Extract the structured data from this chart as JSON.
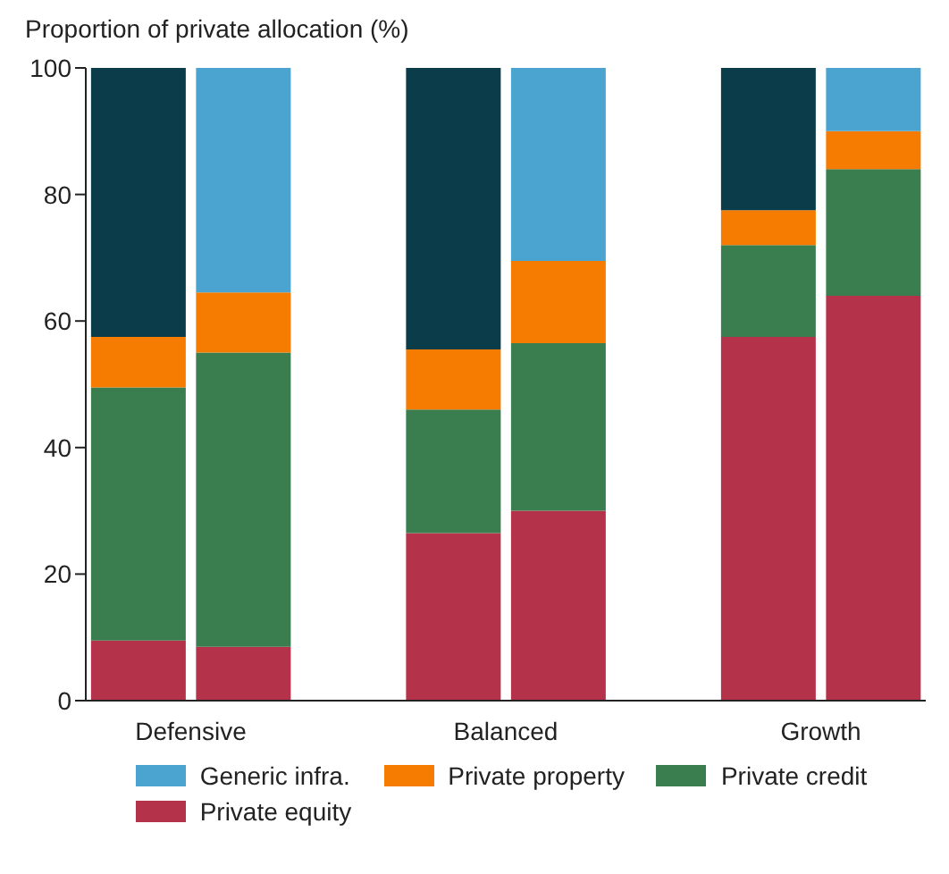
{
  "chart_data": {
    "type": "bar",
    "stacked": true,
    "ylabel": "Proportion of private allocation (%)",
    "categories": [
      "Defensive",
      null,
      null,
      "Balanced",
      null,
      null,
      "Growth",
      null
    ],
    "series": [
      {
        "name": "Private equity",
        "color": "#b5334a",
        "values": [
          9.5,
          8.5,
          null,
          26.5,
          30,
          null,
          57.5,
          64
        ]
      },
      {
        "name": "Private credit",
        "color": "#3a7d4f",
        "values": [
          40,
          46.5,
          null,
          19.5,
          26.5,
          null,
          14.5,
          20
        ]
      },
      {
        "name": "Private property",
        "color": "#f57c00",
        "values": [
          8,
          9.5,
          null,
          9.5,
          13,
          null,
          5.5,
          6
        ]
      },
      {
        "color": "#0b3c49",
        "values": [
          42.5,
          null,
          null,
          44.5,
          null,
          null,
          22.5,
          null
        ]
      },
      {
        "name": "Generic infra.",
        "color": "#4ba3d0",
        "values": [
          null,
          35.5,
          null,
          null,
          30.5,
          null,
          null,
          10
        ]
      }
    ],
    "ylim": [
      0,
      100
    ],
    "yticks": [
      0,
      20,
      40,
      60,
      80,
      100
    ],
    "legend": "bottom"
  }
}
